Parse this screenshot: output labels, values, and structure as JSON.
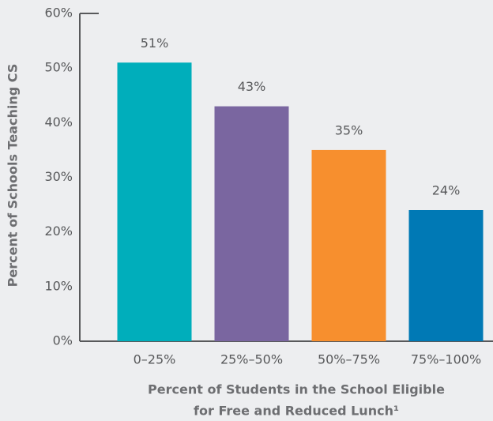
{
  "chart_data": {
    "type": "bar",
    "ylabel": "Percent of Schools Teaching CS",
    "xlabel": [
      "Percent of Students in the School Eligible",
      "for Free and Reduced Lunch¹"
    ],
    "categories": [
      "0–25%",
      "25%–50%",
      "50%–75%",
      "75%–100%"
    ],
    "values": [
      51,
      43,
      35,
      24
    ],
    "value_labels": [
      "51%",
      "43%",
      "35%",
      "24%"
    ],
    "colors": [
      "#00aebb",
      "#7a66a0",
      "#f78f2e",
      "#0079b5"
    ],
    "ylim": [
      0,
      60
    ],
    "yticks": [
      {
        "value": 0,
        "label": "0%"
      },
      {
        "value": 10,
        "label": "10%"
      },
      {
        "value": 20,
        "label": "20%"
      },
      {
        "value": 30,
        "label": "30%"
      },
      {
        "value": 40,
        "label": "40%"
      },
      {
        "value": 50,
        "label": "50%"
      },
      {
        "value": 60,
        "label": "60%"
      }
    ],
    "grid": false
  }
}
